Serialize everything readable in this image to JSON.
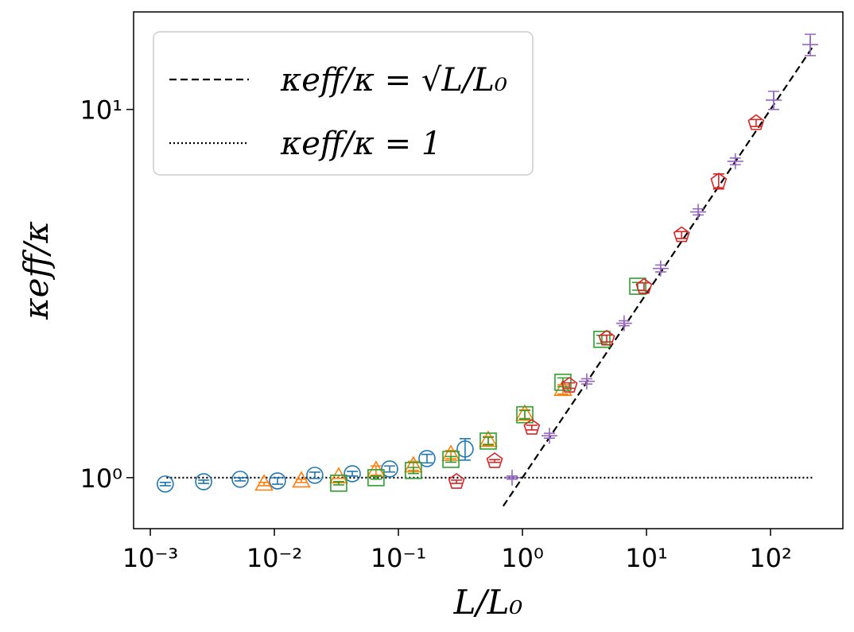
{
  "chart_data": {
    "type": "scatter",
    "x_label": "L/L₀",
    "y_label": "κeff/κ",
    "xlog": true,
    "ylog": true,
    "xlim": [
      0.000733,
      383
    ],
    "ylim": [
      0.727,
      18.4
    ],
    "xticks": [
      {
        "value": 0.001,
        "label": "10⁻³"
      },
      {
        "value": 0.01,
        "label": "10⁻²"
      },
      {
        "value": 0.1,
        "label": "10⁻¹"
      },
      {
        "value": 1,
        "label": "10⁰"
      },
      {
        "value": 10,
        "label": "10¹"
      },
      {
        "value": 100,
        "label": "10²"
      }
    ],
    "yticks": [
      {
        "value": 1,
        "label": "10⁰"
      },
      {
        "value": 10,
        "label": "10¹"
      }
    ],
    "legend": "upper left",
    "lines": [
      {
        "name": "κeff/κ = √L/L₀",
        "style": "dashed",
        "color": "#000000",
        "x": [
          0.7,
          220
        ],
        "y": [
          0.837,
          14.83
        ]
      },
      {
        "name": "κeff/κ = 1",
        "style": "dotted",
        "color": "#000000",
        "x": [
          0.00135,
          220
        ],
        "y": [
          1,
          1
        ]
      }
    ],
    "series": [
      {
        "marker": "circle",
        "color": "#1f77b4",
        "x": [
          0.00132,
          0.00269,
          0.0053,
          0.0106,
          0.0212,
          0.0425,
          0.085,
          0.17,
          0.345
        ],
        "values": [
          0.961,
          0.975,
          0.99,
          0.98,
          1.015,
          1.025,
          1.056,
          1.127,
          1.196
        ],
        "errors": [
          0.01,
          0.01,
          0.01,
          0.02,
          0.02,
          0.015,
          0.02,
          0.03,
          0.08
        ]
      },
      {
        "marker": "triangle",
        "color": "#ff7f0e",
        "x": [
          0.00826,
          0.0165,
          0.033,
          0.066,
          0.132,
          0.265,
          0.53,
          1.045,
          2.12
        ],
        "values": [
          0.961,
          0.98,
          1.005,
          1.046,
          1.077,
          1.155,
          1.263,
          1.488,
          1.737
        ],
        "errors": [
          0.01,
          0.01,
          0.01,
          0.03,
          0.03,
          0.03,
          0.03,
          0.04,
          0.05
        ]
      },
      {
        "marker": "square",
        "color": "#2ca02c",
        "x": [
          0.033,
          0.066,
          0.132,
          0.265,
          0.53,
          1.045,
          2.12,
          4.37,
          8.5
        ],
        "values": [
          0.966,
          1.0,
          1.046,
          1.121,
          1.257,
          1.482,
          1.816,
          2.375,
          3.31
        ],
        "errors": [
          0.01,
          0.01,
          0.02,
          0.02,
          0.03,
          0.04,
          0.05,
          0.06,
          0.08
        ]
      },
      {
        "marker": "pentagon",
        "color": "#d62728",
        "x": [
          0.294,
          0.597,
          1.19,
          2.39,
          4.78,
          9.55,
          19.2,
          38.2,
          76.5
        ],
        "values": [
          0.975,
          1.11,
          1.368,
          1.779,
          2.388,
          3.3,
          4.56,
          6.38,
          9.19
        ],
        "errors": [
          0.01,
          0.01,
          0.02,
          0.03,
          0.05,
          0.08,
          0.1,
          0.3,
          0.2
        ]
      },
      {
        "marker": "plus",
        "color": "#9467bd",
        "x": [
          0.825,
          1.65,
          3.3,
          6.6,
          13.0,
          26.1,
          52,
          106,
          209
        ],
        "values": [
          1.0,
          1.3,
          1.826,
          2.626,
          3.7,
          5.27,
          7.23,
          10.6,
          15.0
        ],
        "errors": [
          0.01,
          0.02,
          0.03,
          0.04,
          0.08,
          0.1,
          0.15,
          0.6,
          1.0
        ]
      }
    ]
  }
}
